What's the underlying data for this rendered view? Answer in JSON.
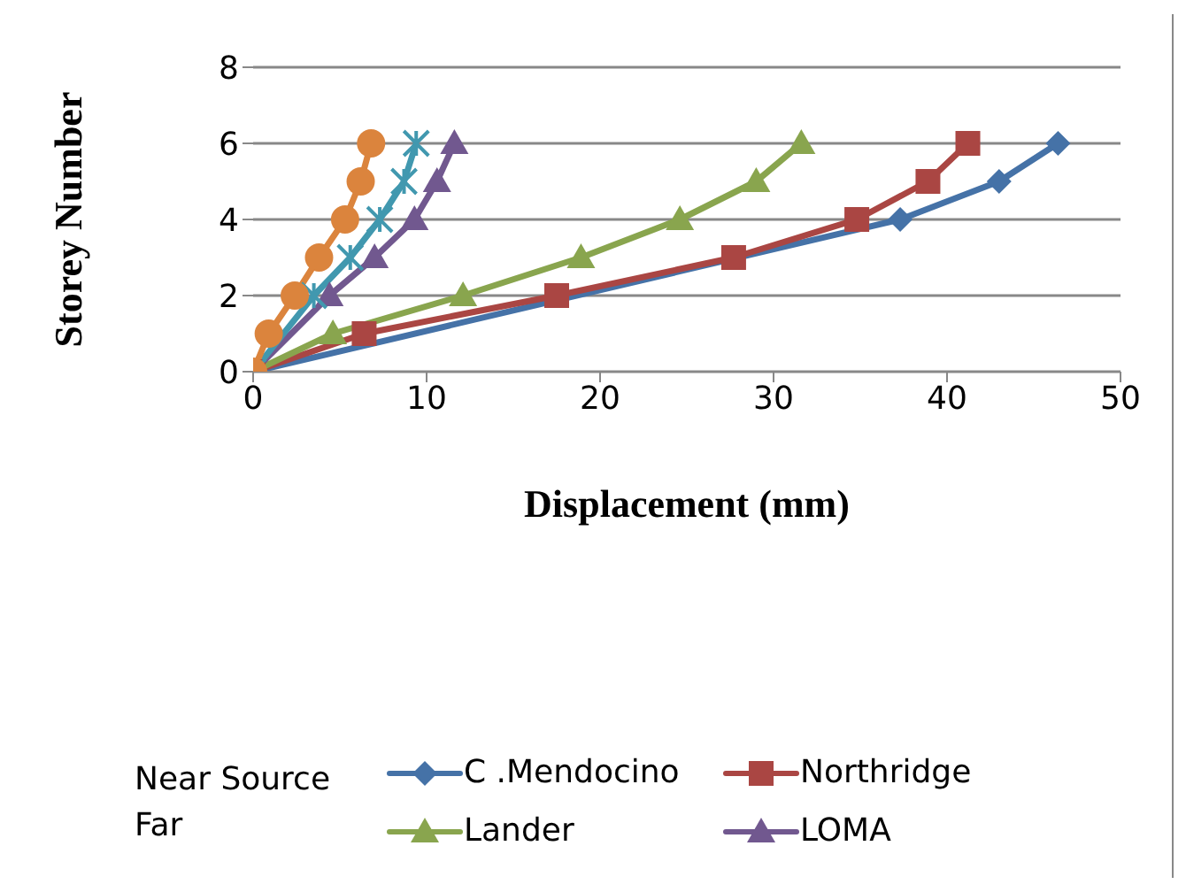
{
  "chart_data": {
    "type": "line",
    "xlabel": "Displacement (mm)",
    "ylabel": "Storey Number",
    "xlim": [
      0,
      50
    ],
    "xticks": [
      0,
      10,
      20,
      30,
      40,
      50
    ],
    "ylim": [
      0,
      8
    ],
    "yticks": [
      0,
      2,
      4,
      6,
      8
    ],
    "grid": "y",
    "legend": "bottom",
    "annotations": [
      "Near Source",
      "Far"
    ],
    "series": [
      {
        "name": "C .Mendocino",
        "color": "#4572a7",
        "marker": "diamond",
        "x": [
          0,
          6.5,
          17.5,
          28,
          37.3,
          43,
          46.4
        ],
        "values": [
          0,
          null,
          null,
          null,
          4,
          5,
          6
        ]
      },
      {
        "name": "Northridge",
        "color": "#aa4643",
        "marker": "square",
        "x": [
          0,
          6.4,
          17.5,
          27.7,
          34.8,
          38.9,
          41.2
        ],
        "values": [
          0,
          1,
          2,
          3,
          4,
          5,
          6
        ]
      },
      {
        "name": "Lander",
        "color": "#89a54e",
        "marker": "triangle",
        "x": [
          0,
          4.6,
          12.1,
          18.9,
          24.6,
          29,
          31.6
        ],
        "values": [
          0,
          1,
          2,
          3,
          4,
          5,
          6
        ]
      },
      {
        "name": "LOMA",
        "color": "#71588f",
        "marker": "triangle",
        "x": [
          0,
          1.5,
          4.4,
          7,
          9.3,
          10.6,
          11.6
        ],
        "values": [
          0,
          null,
          2,
          3,
          4,
          5,
          6
        ]
      },
      {
        "color": "#4198af",
        "marker": "cross",
        "x": [
          0,
          1.5,
          3.5,
          5.6,
          7.3,
          8.7,
          9.4
        ],
        "values": [
          0,
          null,
          2,
          3,
          4,
          5,
          6
        ]
      },
      {
        "color": "#db843d",
        "marker": "circle",
        "x": [
          0,
          0.9,
          2.4,
          3.8,
          5.3,
          6.2,
          6.8
        ],
        "values": [
          0,
          1,
          2,
          3,
          4,
          5,
          6
        ]
      }
    ]
  }
}
